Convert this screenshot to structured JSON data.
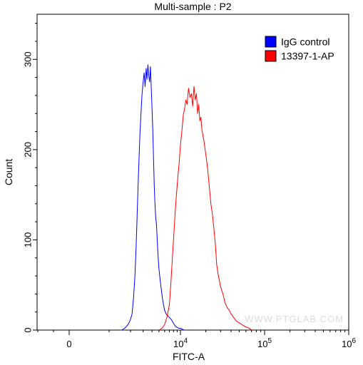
{
  "chart_data": {
    "type": "line",
    "title": "Multi-sample : P2",
    "xlabel": "FITC-A",
    "ylabel": "Count",
    "x_scale": "biexponential",
    "ylim": [
      0,
      350
    ],
    "x_ticks": [
      {
        "value": 0,
        "label": "0"
      },
      {
        "value": 10000,
        "label": "10",
        "exp": "4"
      },
      {
        "value": 100000,
        "label": "10",
        "exp": "5"
      },
      {
        "value": 1000000,
        "label": "10",
        "exp": "6"
      }
    ],
    "y_ticks": [
      0,
      100,
      200,
      300
    ],
    "legend_position": "top-right",
    "grid": false,
    "watermark": "WWW.PTGLAB.COM",
    "series": [
      {
        "name": "IgG control",
        "color": "#0000ff",
        "x": [
          1500,
          1650,
          1800,
          1900,
          2000,
          2100,
          2200,
          2300,
          2400,
          2500,
          2600,
          2700,
          2800,
          2900,
          3000,
          3100,
          3200,
          3300,
          3400,
          3500,
          3600,
          3700,
          3800,
          3900,
          4000,
          4100,
          4200,
          4300,
          4400,
          4500,
          4600,
          4700,
          4800,
          4900,
          5000,
          5200,
          5400,
          5600,
          5800,
          6000,
          6300,
          6600,
          7000,
          7400,
          7800,
          8200,
          8600,
          9000,
          9500,
          10000,
          10500,
          11000
        ],
        "y": [
          0,
          2,
          5,
          8,
          12,
          18,
          35,
          60,
          95,
          140,
          180,
          215,
          240,
          262,
          275,
          285,
          270,
          290,
          278,
          294,
          282,
          275,
          292,
          268,
          245,
          220,
          190,
          160,
          140,
          125,
          118,
          105,
          90,
          78,
          68,
          55,
          45,
          35,
          28,
          22,
          18,
          16,
          14,
          12,
          9,
          6,
          4,
          3,
          2,
          2,
          1,
          0
        ]
      },
      {
        "name": "13397-1-AP",
        "color": "#ff0000",
        "x": [
          5000,
          5500,
          6000,
          6500,
          7000,
          7300,
          7600,
          8000,
          8400,
          8800,
          9200,
          9600,
          10000,
          10400,
          10800,
          11200,
          11600,
          12000,
          12500,
          13000,
          13500,
          14000,
          14500,
          15000,
          15500,
          16000,
          16500,
          17000,
          17500,
          18000,
          19000,
          20000,
          21000,
          22000,
          23000,
          24000,
          25000,
          26000,
          27000,
          28000,
          29000,
          30000,
          32000,
          34000,
          36000,
          38000,
          40000,
          43000,
          46000,
          50000,
          54000,
          58000,
          62000,
          66000,
          70000
        ],
        "y": [
          0,
          2,
          6,
          15,
          28,
          48,
          72,
          100,
          128,
          150,
          170,
          185,
          205,
          220,
          238,
          245,
          255,
          250,
          268,
          258,
          262,
          248,
          270,
          255,
          262,
          240,
          250,
          232,
          236,
          222,
          210,
          195,
          180,
          160,
          140,
          128,
          112,
          95,
          72,
          62,
          55,
          48,
          40,
          30,
          25,
          22,
          18,
          14,
          10,
          8,
          6,
          4,
          3,
          2,
          0
        ]
      }
    ]
  }
}
